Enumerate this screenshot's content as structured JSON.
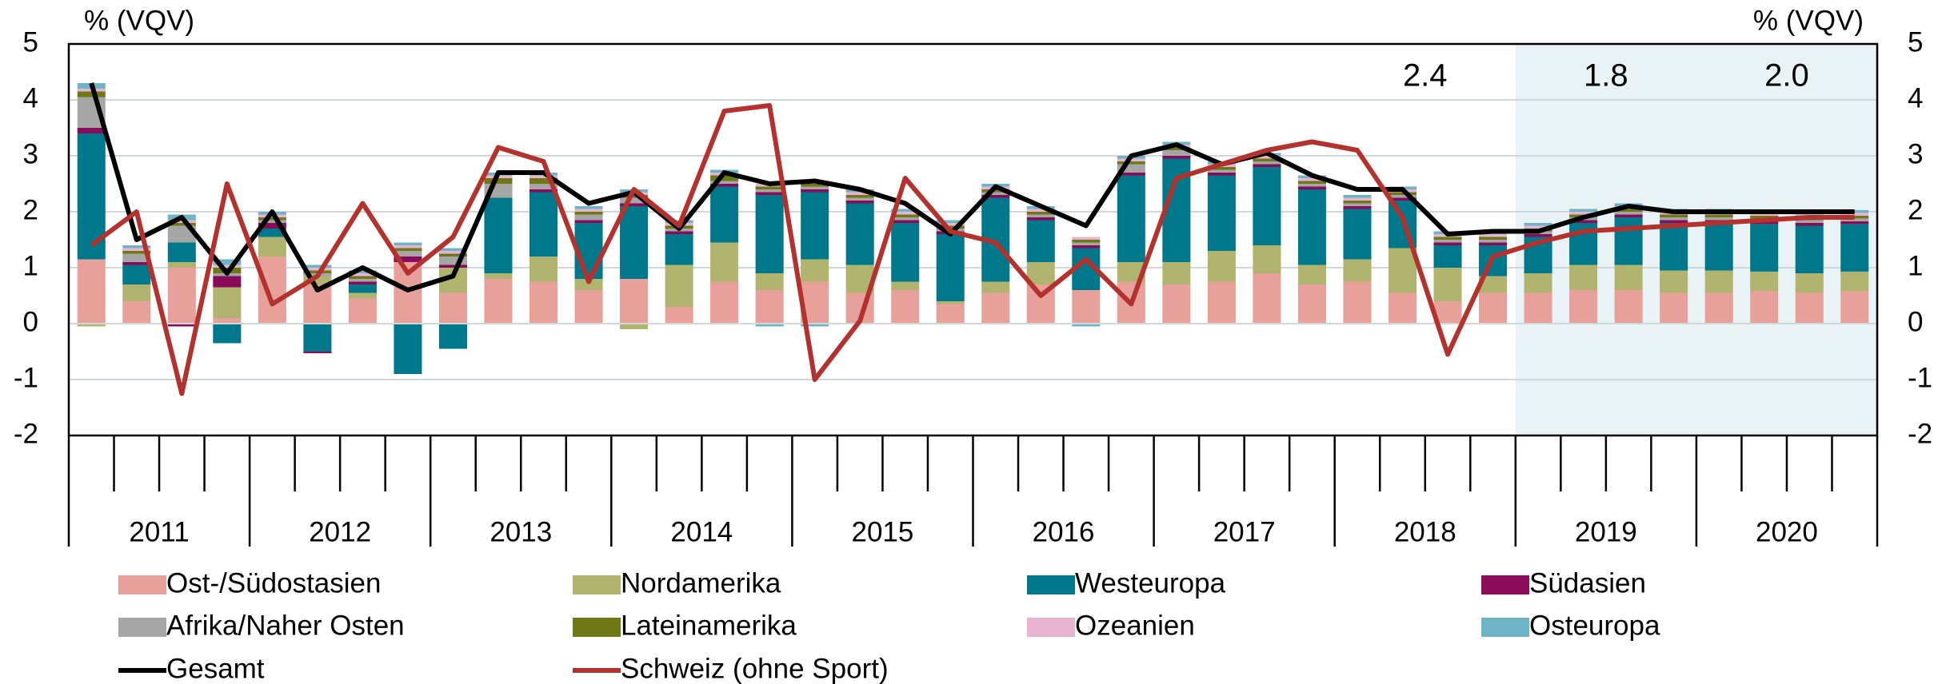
{
  "chart_data": {
    "type": "bar",
    "y_label": "% (VQV)",
    "y2_label": "% (VQV)",
    "years": [
      "2011",
      "2012",
      "2013",
      "2014",
      "2015",
      "2016",
      "2017",
      "2018",
      "2019",
      "2020"
    ],
    "annotations": [
      "2.4",
      "1.8",
      "2.0"
    ],
    "ylim": [
      -2,
      5
    ],
    "yticks": [
      -2,
      -1,
      0,
      1,
      2,
      3,
      4,
      5
    ],
    "y2lim": [
      -2,
      5
    ],
    "y2ticks": [
      -2,
      -1,
      0,
      1,
      2,
      3,
      4,
      5
    ],
    "grid": true,
    "series": [
      {
        "name": "Ost-/Südostasien",
        "color": "#e8a09a",
        "values": [
          1.15,
          0.4,
          1.0,
          0.1,
          1.2,
          0.7,
          0.45,
          1.1,
          0.55,
          0.8,
          0.75,
          0.6,
          0.8,
          0.3,
          0.75,
          0.6,
          0.75,
          0.55,
          0.6,
          0.35,
          0.55,
          0.7,
          0.6,
          0.75,
          0.7,
          0.75,
          0.9,
          0.7,
          0.75,
          0.55,
          0.4,
          0.55,
          0.55,
          0.6,
          0.6,
          0.55,
          0.55,
          0.58,
          0.55,
          0.58
        ]
      },
      {
        "name": "Nordamerika",
        "color": "#b0b46e",
        "values": [
          -0.05,
          0.3,
          0.1,
          0.55,
          0.35,
          0.15,
          0.1,
          0,
          0.45,
          0.1,
          0.45,
          0.2,
          -0.1,
          0.75,
          0.7,
          0.3,
          0.4,
          0.5,
          0.15,
          0.05,
          0.2,
          0.4,
          0,
          0.35,
          0.4,
          0.55,
          0.5,
          0.35,
          0.4,
          0.8,
          0.6,
          0.3,
          0.35,
          0.45,
          0.45,
          0.4,
          0.4,
          0.35,
          0.35,
          0.35
        ]
      },
      {
        "name": "Westeuropa",
        "color": "#00788c",
        "values": [
          2.25,
          0.35,
          0.35,
          -0.35,
          0.15,
          -0.5,
          0.15,
          -0.9,
          -0.45,
          1.35,
          1.15,
          1.0,
          1.3,
          0.55,
          1.0,
          1.4,
          1.2,
          1.1,
          1.05,
          1.2,
          1.5,
          0.75,
          0.75,
          1.55,
          1.85,
          1.35,
          1.4,
          1.35,
          0.9,
          0.85,
          0.4,
          0.55,
          0.65,
          0.75,
          0.85,
          0.85,
          0.85,
          0.85,
          0.85,
          0.85
        ]
      },
      {
        "name": "Südasien",
        "color": "#8c0a5a",
        "values": [
          0.1,
          0.05,
          -0.05,
          0.2,
          0.1,
          -0.03,
          0.05,
          0.1,
          0.05,
          0,
          0.05,
          0.05,
          0.05,
          0.05,
          0.05,
          0.05,
          0.05,
          0.05,
          0.05,
          0.05,
          0.05,
          0.05,
          0.05,
          0.05,
          0.05,
          0.05,
          0.05,
          0.05,
          0.05,
          0.05,
          0.05,
          0.05,
          0.05,
          0.05,
          0.05,
          0.05,
          0.05,
          0.05,
          0.05,
          0.05
        ]
      },
      {
        "name": "Afrika/Naher Osten",
        "color": "#a6a6a6",
        "values": [
          0.55,
          0.15,
          0.3,
          0.05,
          0.05,
          0.05,
          0.05,
          0.1,
          0.15,
          0.25,
          0.1,
          0.1,
          0.1,
          0.05,
          0.05,
          0.05,
          0.05,
          0.05,
          0.05,
          0.05,
          0.05,
          0.05,
          0.05,
          0.15,
          0.1,
          0.05,
          0.05,
          0.05,
          0.05,
          0.05,
          0.05,
          0.05,
          0.05,
          0.05,
          0.05,
          0.05,
          0.05,
          0.05,
          0.05,
          0.05
        ]
      },
      {
        "name": "Lateinamerika",
        "color": "#6e7814",
        "values": [
          0.1,
          0.05,
          0.05,
          0.1,
          0.05,
          0.05,
          0.05,
          0.05,
          0.05,
          0.1,
          0.1,
          0.05,
          0.05,
          0.05,
          0.1,
          0.05,
          0.05,
          0.05,
          0.05,
          0.05,
          0.05,
          0.05,
          0.05,
          0.05,
          0.05,
          0.05,
          0.05,
          0.05,
          0.05,
          0.05,
          0.05,
          0.05,
          0.05,
          0.05,
          0.05,
          0.05,
          0.05,
          0.05,
          0.05,
          0.05
        ]
      },
      {
        "name": "Ozeanien",
        "color": "#e8b4d2",
        "values": [
          0.05,
          0.05,
          0.05,
          0.05,
          0.05,
          0.05,
          0.05,
          0.05,
          0.05,
          0.05,
          0.05,
          0.05,
          0.05,
          0.05,
          0.05,
          0.05,
          0.05,
          0.05,
          0.05,
          0.05,
          0.05,
          0.05,
          0.05,
          0.05,
          0.05,
          0.05,
          0.05,
          0.05,
          0.05,
          0.05,
          0.05,
          0.05,
          0.05,
          0.05,
          0.05,
          0.05,
          0.05,
          0.05,
          0.05,
          0.05
        ]
      },
      {
        "name": "Osteuropa",
        "color": "#6eb4c8",
        "values": [
          0.1,
          0.05,
          0.1,
          0.1,
          0.05,
          0.05,
          0.05,
          0.05,
          0.05,
          0.05,
          0.05,
          0.05,
          0.05,
          0.05,
          0.05,
          -0.05,
          -0.05,
          0.05,
          0.05,
          0.05,
          0.05,
          0.05,
          -0.05,
          0.05,
          0.05,
          0.05,
          0.05,
          0.05,
          0.05,
          0.05,
          0.05,
          0.05,
          0.05,
          0.05,
          0.05,
          0.05,
          0.05,
          0.05,
          0.05,
          0.05
        ]
      },
      {
        "name": "Gesamt",
        "type": "line",
        "color": "#000000",
        "values": [
          4.3,
          1.5,
          1.9,
          0.9,
          2.0,
          0.6,
          1.0,
          0.6,
          0.85,
          2.7,
          2.7,
          2.15,
          2.35,
          1.7,
          2.7,
          2.5,
          2.55,
          2.4,
          2.15,
          1.6,
          2.45,
          2.1,
          1.75,
          3.0,
          3.2,
          2.85,
          3.05,
          2.65,
          2.4,
          2.4,
          1.6,
          1.65,
          1.65,
          1.9,
          2.1,
          2.0,
          2.0,
          2.0,
          2.0,
          2.0
        ]
      },
      {
        "name": "Schweiz (ohne Sport)",
        "type": "line",
        "color": "#b4322d",
        "values": [
          1.4,
          2.0,
          -1.25,
          2.5,
          0.35,
          0.85,
          2.15,
          0.9,
          1.55,
          3.15,
          2.9,
          0.75,
          2.4,
          1.75,
          3.8,
          3.9,
          -1.0,
          0.05,
          2.6,
          1.65,
          1.45,
          0.5,
          1.15,
          0.35,
          2.6,
          2.85,
          3.1,
          3.25,
          3.1,
          1.9,
          -0.55,
          1.2,
          1.45,
          1.65,
          1.7,
          1.75,
          1.8,
          1.85,
          1.9,
          1.9
        ]
      }
    ]
  }
}
